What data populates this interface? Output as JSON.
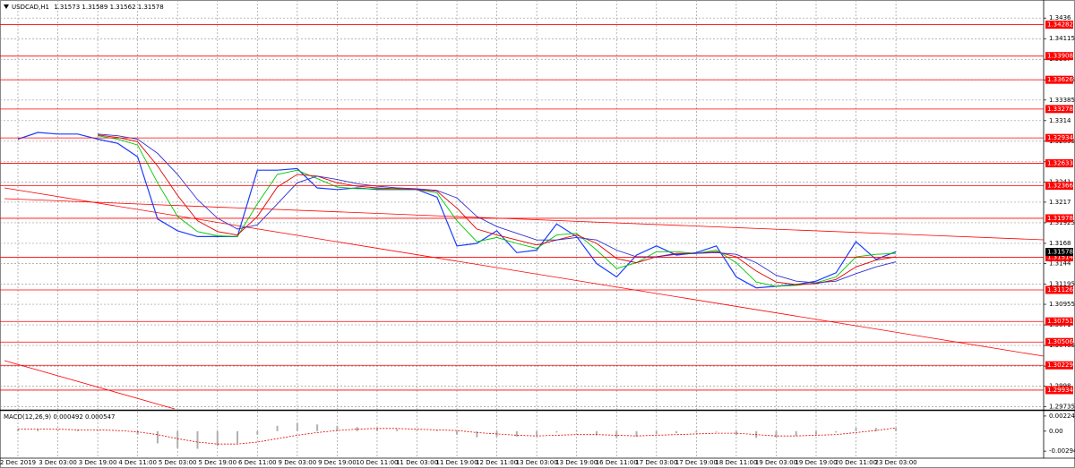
{
  "chart_data": [
    {
      "type": "line",
      "title": "USDCAD,H1",
      "ohlc": [
        1.31573,
        1.31589,
        1.31562,
        1.31578
      ],
      "x_labels": [
        "2 Dec 2019",
        "3 Dec 03:00",
        "3 Dec 19:00",
        "4 Dec 11:00",
        "5 Dec 03:00",
        "5 Dec 19:00",
        "6 Dec 11:00",
        "9 Dec 03:00",
        "9 Dec 19:00",
        "10 Dec 11:00",
        "11 Dec 03:00",
        "11 Dec 19:00",
        "12 Dec 11:00",
        "13 Dec 03:00",
        "13 Dec 19:00",
        "16 Dec 11:00",
        "17 Dec 03:00",
        "17 Dec 19:00",
        "18 Dec 11:00",
        "19 Dec 03:00",
        "19 Dec 19:00",
        "20 Dec 11:00",
        "23 Dec 03:00"
      ],
      "series": [
        {
          "color": "#1a3cff",
          "values": [
            1.3292,
            1.33,
            1.3298,
            1.3298,
            1.3292,
            1.3287,
            1.3271,
            1.3197,
            1.3183,
            1.3176,
            1.3176,
            1.3176,
            1.3255,
            1.3255,
            1.3257,
            1.3234,
            1.3232,
            1.3234,
            1.3232,
            1.3232,
            1.3232,
            1.3223,
            1.3165,
            1.3168,
            1.3183,
            1.3157,
            1.316,
            1.3191,
            1.3176,
            1.3144,
            1.3128,
            1.3154,
            1.3165,
            1.3154,
            1.3157,
            1.3165,
            1.3128,
            1.3115,
            1.3117,
            1.3119,
            1.3123,
            1.3133,
            1.317,
            1.3149,
            1.3158
          ]
        },
        {
          "color": "#00c800",
          "values": [
            null,
            null,
            null,
            null,
            1.3296,
            1.3292,
            1.3285,
            1.324,
            1.32,
            1.3182,
            1.3177,
            1.3176,
            1.3215,
            1.325,
            1.3255,
            1.3245,
            1.3235,
            1.3233,
            1.3233,
            1.3232,
            1.3232,
            1.3228,
            1.3195,
            1.317,
            1.3175,
            1.3168,
            1.3162,
            1.3178,
            1.318,
            1.316,
            1.3138,
            1.3145,
            1.3158,
            1.3158,
            1.3156,
            1.316,
            1.3145,
            1.3122,
            1.3117,
            1.3118,
            1.3121,
            1.3128,
            1.3152,
            1.3155,
            1.3156
          ]
        },
        {
          "color": "#e00000",
          "values": [
            null,
            null,
            null,
            null,
            1.3297,
            1.3294,
            1.3289,
            1.326,
            1.3225,
            1.3195,
            1.3182,
            1.3178,
            1.32,
            1.3235,
            1.325,
            1.3248,
            1.324,
            1.3236,
            1.3234,
            1.3233,
            1.3232,
            1.323,
            1.321,
            1.3185,
            1.3178,
            1.3172,
            1.3166,
            1.3172,
            1.3178,
            1.3168,
            1.315,
            1.3145,
            1.3152,
            1.3156,
            1.3156,
            1.3158,
            1.3152,
            1.3135,
            1.3122,
            1.3119,
            1.312,
            1.3125,
            1.314,
            1.3148,
            1.3152
          ]
        },
        {
          "color": "#3030d0",
          "values": [
            null,
            null,
            null,
            null,
            1.3298,
            1.3296,
            1.3292,
            1.3275,
            1.325,
            1.322,
            1.3198,
            1.3185,
            1.319,
            1.3215,
            1.324,
            1.3248,
            1.3244,
            1.3239,
            1.3236,
            1.3234,
            1.3233,
            1.3231,
            1.3222,
            1.32,
            1.3188,
            1.318,
            1.3172,
            1.3172,
            1.3175,
            1.3172,
            1.316,
            1.3152,
            1.3152,
            1.3155,
            1.3156,
            1.3157,
            1.3155,
            1.3145,
            1.313,
            1.3123,
            1.3121,
            1.3123,
            1.3132,
            1.314,
            1.3146
          ]
        }
      ],
      "levels": [
        1.34282,
        1.33908,
        1.33626,
        1.33278,
        1.32934,
        1.32633,
        1.32366,
        1.31978,
        1.31514,
        1.31126,
        1.30751,
        1.30506,
        1.30229,
        1.29934
      ],
      "level_color": "#ff0000",
      "ylim": [
        1.2971,
        1.3449
      ],
      "yticks": [
        1.3436,
        1.34115,
        1.3387,
        1.33625,
        1.33385,
        1.3314,
        1.32895,
        1.3265,
        1.3241,
        1.3217,
        1.31925,
        1.3168,
        1.3144,
        1.31195,
        1.30955,
        1.3071,
        1.30465,
        1.3022,
        1.2998,
        1.29735
      ],
      "grid": true
    },
    {
      "type": "bar",
      "title": "MACD(12,26,9)",
      "legend_values": [
        0.000492,
        0.000547
      ],
      "color": "#b0b0b0",
      "signal_color": "#e00000",
      "values": [
        0.0003,
        0.0003,
        0.0002,
        0.0002,
        0.0001,
        0.0,
        -0.0005,
        -0.0018,
        -0.0025,
        -0.0026,
        -0.0022,
        -0.0018,
        -0.0005,
        0.0008,
        0.0012,
        0.001,
        0.0008,
        0.0006,
        0.0004,
        0.0003,
        0.0002,
        0.0001,
        -0.0005,
        -0.0009,
        -0.0008,
        -0.0008,
        -0.0007,
        -0.0002,
        -0.0001,
        -0.0006,
        -0.001,
        -0.0008,
        -0.0004,
        -0.0003,
        -0.0002,
        -0.0001,
        -0.0006,
        -0.001,
        -0.0009,
        -0.0007,
        -0.0005,
        -0.0002,
        0.0005,
        0.0005,
        0.0005
      ],
      "signal_values": [
        0.0003,
        0.0003,
        0.0003,
        0.0002,
        0.0002,
        0.0001,
        -0.0001,
        -0.0005,
        -0.0011,
        -0.0016,
        -0.0019,
        -0.0019,
        -0.0016,
        -0.0011,
        -0.0006,
        -0.0002,
        0.0001,
        0.0003,
        0.0004,
        0.0004,
        0.0003,
        0.0002,
        0.0001,
        -0.0002,
        -0.0004,
        -0.0006,
        -0.0007,
        -0.0006,
        -0.0005,
        -0.0005,
        -0.0006,
        -0.0007,
        -0.0006,
        -0.0005,
        -0.0004,
        -0.0003,
        -0.0003,
        -0.0005,
        -0.0007,
        -0.0007,
        -0.0006,
        -0.0005,
        -0.0002,
        0.0001,
        0.0005
      ],
      "ylim": [
        -0.00385,
        0.00289
      ],
      "yticks": [
        0.00224,
        {
          "value": 0,
          "label": "0.00"
        },
        -0.00294
      ]
    }
  ]
}
